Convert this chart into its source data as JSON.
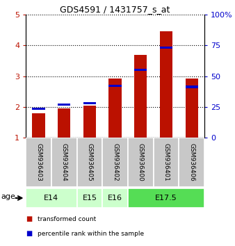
{
  "title": "GDS4591 / 1431757_s_at",
  "samples": [
    "GSM936403",
    "GSM936404",
    "GSM936405",
    "GSM936402",
    "GSM936400",
    "GSM936401",
    "GSM936406"
  ],
  "transformed_counts": [
    1.8,
    1.95,
    2.05,
    2.93,
    3.7,
    4.47,
    2.93
  ],
  "percentile_ranks": [
    1.9,
    2.05,
    2.08,
    2.65,
    3.18,
    3.9,
    2.62
  ],
  "percentile_bar_heights": [
    0.07,
    0.07,
    0.07,
    0.07,
    0.07,
    0.07,
    0.07
  ],
  "age_groups": [
    {
      "label": "E14",
      "start": 0,
      "end": 1,
      "color": "#ccffcc"
    },
    {
      "label": "E15",
      "start": 2,
      "end": 2,
      "color": "#ccffcc"
    },
    {
      "label": "E16",
      "start": 3,
      "end": 3,
      "color": "#ccffcc"
    },
    {
      "label": "E17.5",
      "start": 4,
      "end": 6,
      "color": "#55dd55"
    }
  ],
  "ylim_left": [
    1,
    5
  ],
  "ylim_right": [
    0,
    100
  ],
  "yticks_left": [
    1,
    2,
    3,
    4,
    5
  ],
  "yticks_right": [
    0,
    25,
    50,
    75,
    100
  ],
  "bar_color": "#bb1100",
  "percentile_color": "#0000cc",
  "background_sample": "#c8c8c8",
  "legend_red_label": "transformed count",
  "legend_blue_label": "percentile rank within the sample",
  "age_label": "age",
  "bar_width": 0.5
}
